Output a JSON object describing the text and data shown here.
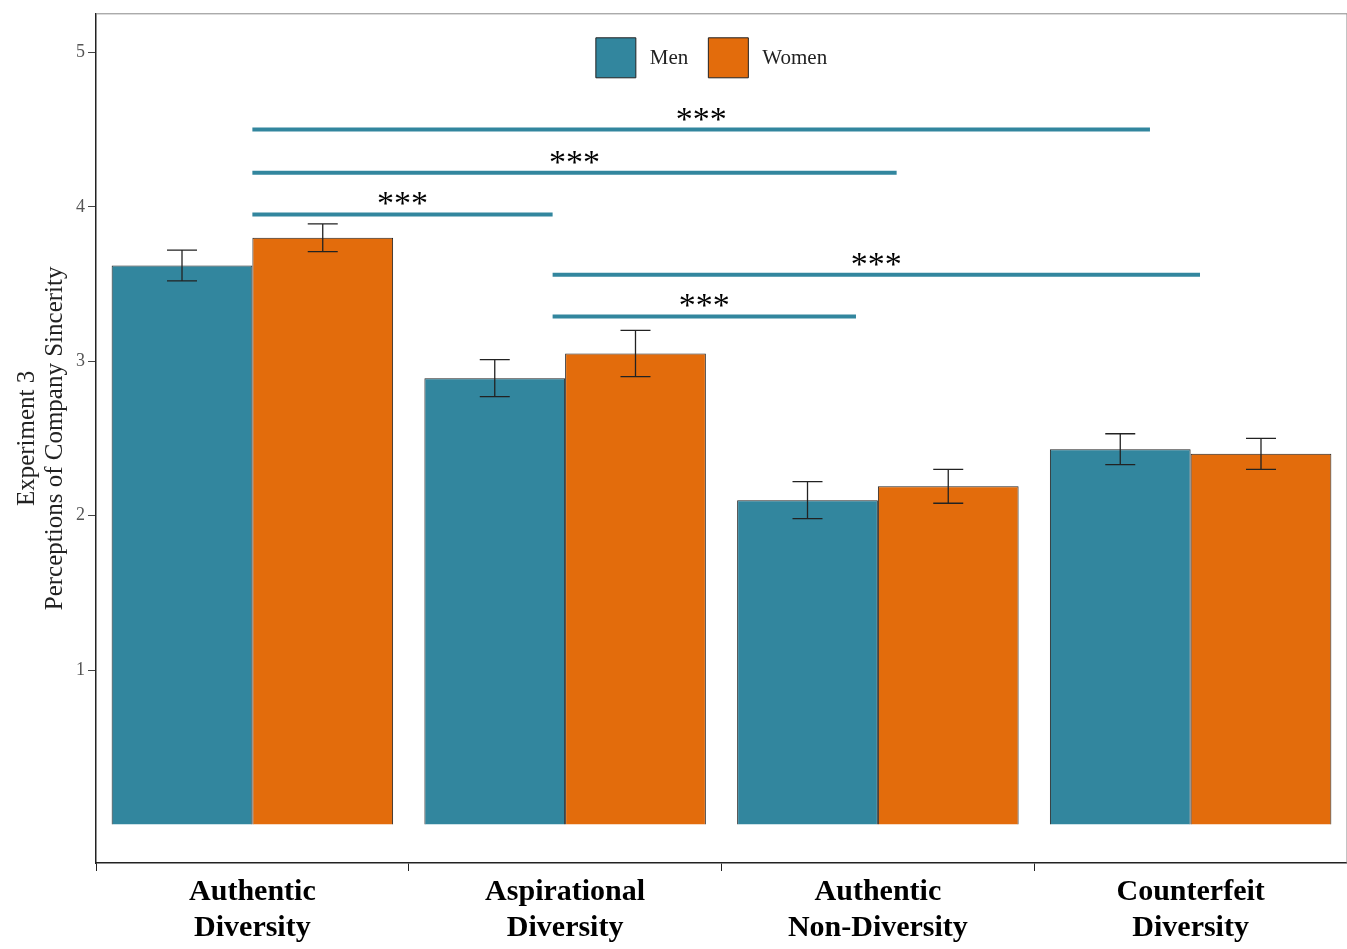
{
  "chart_data": {
    "type": "bar",
    "ylabel": "Experiment 3\nPerceptions of Company Sincerity",
    "categories": [
      "Authentic Diversity",
      "Aspirational Diversity",
      "Authentic Non-Diversity",
      "Counterfeit Diversity"
    ],
    "series": [
      {
        "name": "Men",
        "color": "#32869e",
        "values": [
          3.62,
          2.89,
          2.1,
          2.43
        ],
        "errors": [
          0.1,
          0.12,
          0.12,
          0.1
        ]
      },
      {
        "name": "Women",
        "color": "#e36c0c",
        "values": [
          3.8,
          3.05,
          2.19,
          2.4
        ],
        "errors": [
          0.09,
          0.15,
          0.11,
          0.1
        ]
      }
    ],
    "ylim": [
      -0.25,
      5.25
    ],
    "yticks": [
      1,
      2,
      3,
      4,
      5
    ],
    "grid": false,
    "legend": "top",
    "annotations": [
      "***",
      "***",
      "***",
      "***",
      "***"
    ]
  }
}
